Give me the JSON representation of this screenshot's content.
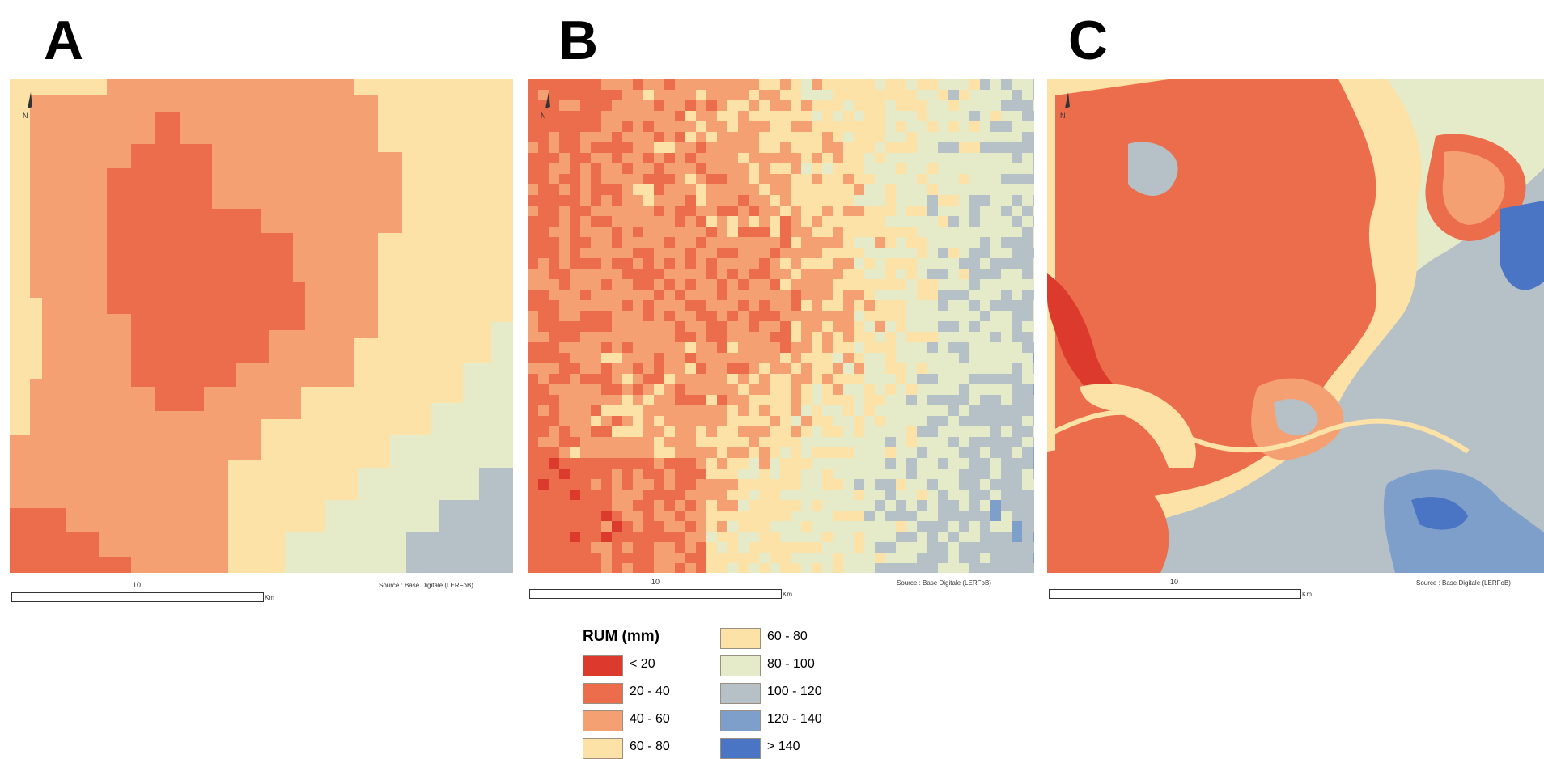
{
  "panels": [
    {
      "label": "A",
      "scale_value": "10",
      "scale_unit": "Km",
      "source": "Source : Base Digitale (LERFoB)"
    },
    {
      "label": "B",
      "scale_value": "10",
      "scale_unit": "Km",
      "source": "Source : Base Digitale (LERFoB)"
    },
    {
      "label": "C",
      "scale_value": "10",
      "scale_unit": "Km",
      "source": "Source : Base Digitale (LERFoB)"
    }
  ],
  "legend": {
    "title": "RUM (mm)",
    "classes": [
      {
        "label": "< 20",
        "color": "#dd3a2e"
      },
      {
        "label": "20 - 40",
        "color": "#ec6d4c"
      },
      {
        "label": "40 - 60",
        "color": "#f5a073"
      },
      {
        "label": "60 - 80",
        "color": "#fce2a6"
      },
      {
        "label": "60 - 80",
        "color": "#fce2a6"
      },
      {
        "label": "80 - 100",
        "color": "#e5ebc8"
      },
      {
        "label": "100 - 120",
        "color": "#b6c0c7"
      },
      {
        "label": "120 - 140",
        "color": "#7f9fcb"
      },
      {
        "label": "> 140",
        "color": "#4a74c4"
      }
    ]
  },
  "north_symbol": "N"
}
